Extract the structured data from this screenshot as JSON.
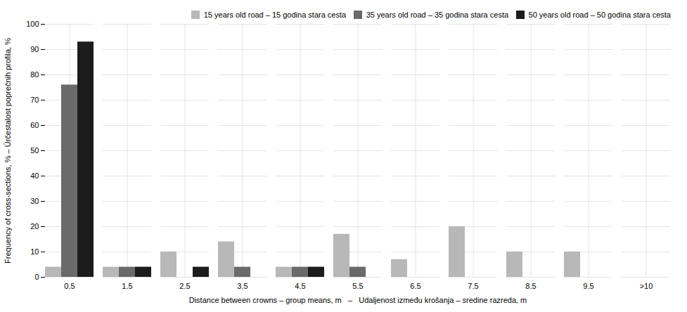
{
  "chart_data": {
    "type": "bar",
    "categories": [
      "0.5",
      "1.5",
      "2.5",
      "3.5",
      "4.5",
      "5.5",
      "6.5",
      "7.5",
      "8.5",
      "9.5",
      ">10"
    ],
    "series": [
      {
        "name": "15 years old road – 15 godina stara cesta",
        "color": "#b8b8b8",
        "values": [
          4,
          4,
          10,
          14,
          4,
          17,
          7,
          20,
          10,
          10,
          0
        ]
      },
      {
        "name": "35 years old road – 35 godina stara cesta",
        "color": "#6a6a6a",
        "values": [
          76,
          4,
          0,
          4,
          4,
          4,
          0,
          0,
          0,
          0,
          0
        ]
      },
      {
        "name": "50 years old road – 50 godina stara cesta",
        "color": "#1c1c1c",
        "values": [
          93,
          4,
          4,
          0,
          4,
          0,
          0,
          0,
          0,
          0,
          0
        ]
      }
    ],
    "xlabel": "Distance between crowns – group means, m   –   Udaljenost između krošanja – sredine razreda, m",
    "ylabel": "Frequency of cross-sections, % – Úrčestalost poprečnih profila, %",
    "ylim": [
      0,
      100
    ],
    "yticks": [
      0,
      10,
      20,
      30,
      40,
      50,
      60,
      70,
      80,
      90,
      100
    ],
    "grid": true,
    "legend": "upper right"
  }
}
